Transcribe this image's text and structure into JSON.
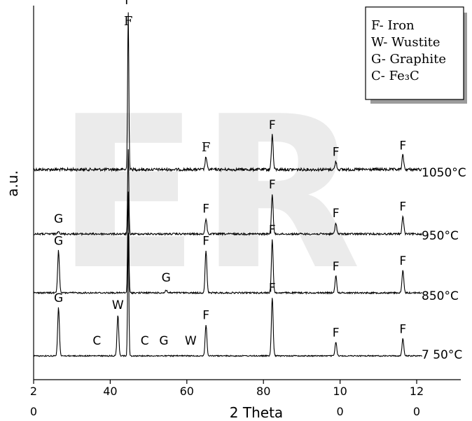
{
  "chart_data": {
    "type": "line",
    "xlabel": "2 Theta",
    "ylabel": "a.u.",
    "xlim": [
      20,
      135
    ],
    "x_ticks": [
      {
        "line1": "2",
        "line2": "0"
      },
      {
        "line1": "40",
        "line2": ""
      },
      {
        "line1": "60",
        "line2": ""
      },
      {
        "line1": "80",
        "line2": ""
      },
      {
        "line1": "10",
        "line2": "0"
      },
      {
        "line1": "12",
        "line2": "0"
      }
    ],
    "x_tick_values": [
      20,
      40,
      60,
      80,
      100,
      120
    ],
    "legend": {
      "placement": "top-right",
      "entries": [
        {
          "text": "F- Iron"
        },
        {
          "text": "W- Wustite"
        },
        {
          "text": "G- Graphite"
        },
        {
          "text": "C- Fe₃C"
        }
      ]
    },
    "watermark": "ER",
    "series": [
      {
        "name": "1050°C",
        "peaks": [
          {
            "x": 44.7,
            "height": 1.0,
            "label": "F"
          },
          {
            "x": 65.0,
            "height": 0.08,
            "label": "F"
          },
          {
            "x": 82.3,
            "height": 0.22,
            "label": "F"
          },
          {
            "x": 98.9,
            "height": 0.05,
            "label": "F"
          },
          {
            "x": 116.4,
            "height": 0.09,
            "label": "F"
          }
        ]
      },
      {
        "name": "950°C",
        "peaks": [
          {
            "x": 26.5,
            "height": 0.015,
            "label": "G"
          },
          {
            "x": 44.7,
            "height": 0.38,
            "label": ""
          },
          {
            "x": 65.0,
            "height": 0.07,
            "label": "F"
          },
          {
            "x": 82.3,
            "height": 0.18,
            "label": "F"
          },
          {
            "x": 98.9,
            "height": 0.05,
            "label": "F"
          },
          {
            "x": 116.4,
            "height": 0.08,
            "label": "F"
          }
        ]
      },
      {
        "name": "850°C",
        "peaks": [
          {
            "x": 26.5,
            "height": 0.15,
            "label": "G"
          },
          {
            "x": 44.7,
            "height": 0.36,
            "label": ""
          },
          {
            "x": 54.6,
            "height": 0.01,
            "label": "G"
          },
          {
            "x": 65.0,
            "height": 0.15,
            "label": "F"
          },
          {
            "x": 82.3,
            "height": 0.19,
            "label": "F"
          },
          {
            "x": 98.9,
            "height": 0.06,
            "label": "F"
          },
          {
            "x": 116.4,
            "height": 0.08,
            "label": "F"
          }
        ]
      },
      {
        "name": "7 50°C",
        "peaks": [
          {
            "x": 26.5,
            "height": 0.14,
            "label": "G"
          },
          {
            "x": 36.5,
            "height": 0.0,
            "label": "C"
          },
          {
            "x": 42.0,
            "height": 0.12,
            "label": "W"
          },
          {
            "x": 44.7,
            "height": 0.36,
            "label": ""
          },
          {
            "x": 49.0,
            "height": 0.0,
            "label": "C"
          },
          {
            "x": 54.0,
            "height": 0.0,
            "label": "G"
          },
          {
            "x": 61.0,
            "height": 0.0,
            "label": "W"
          },
          {
            "x": 65.0,
            "height": 0.09,
            "label": "F"
          },
          {
            "x": 82.3,
            "height": 0.17,
            "label": "F"
          },
          {
            "x": 98.9,
            "height": 0.04,
            "label": "F"
          },
          {
            "x": 116.4,
            "height": 0.05,
            "label": "F"
          }
        ]
      }
    ]
  }
}
